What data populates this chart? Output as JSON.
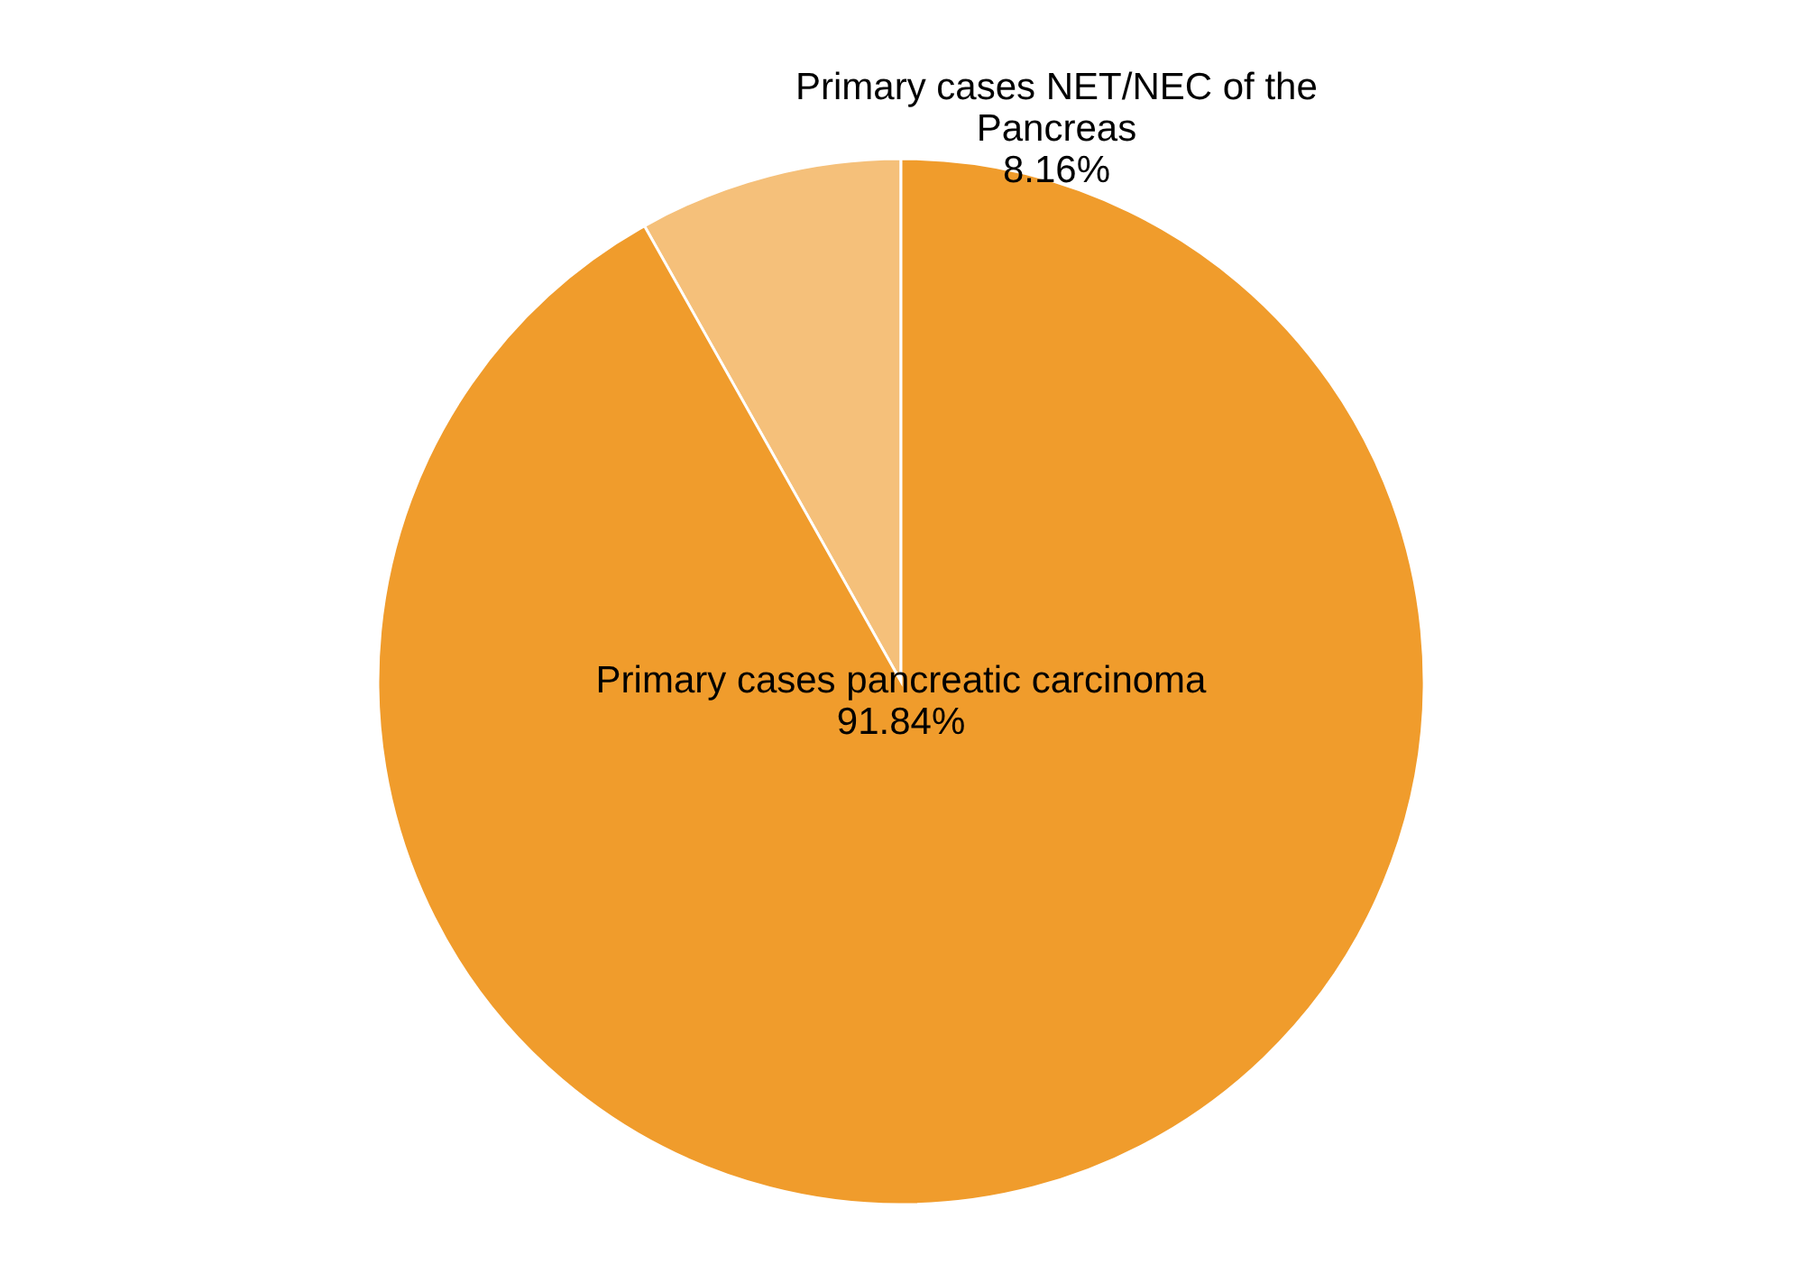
{
  "chart_data": {
    "type": "pie",
    "categories": [
      "Primary cases NET/NEC of the Pancreas",
      "Primary cases pancreatic carcinoma"
    ],
    "values": [
      8.16,
      91.84
    ],
    "colors": [
      "#f5c07a",
      "#f09c2c"
    ],
    "value_labels": [
      "8.16%",
      "91.84%"
    ]
  }
}
